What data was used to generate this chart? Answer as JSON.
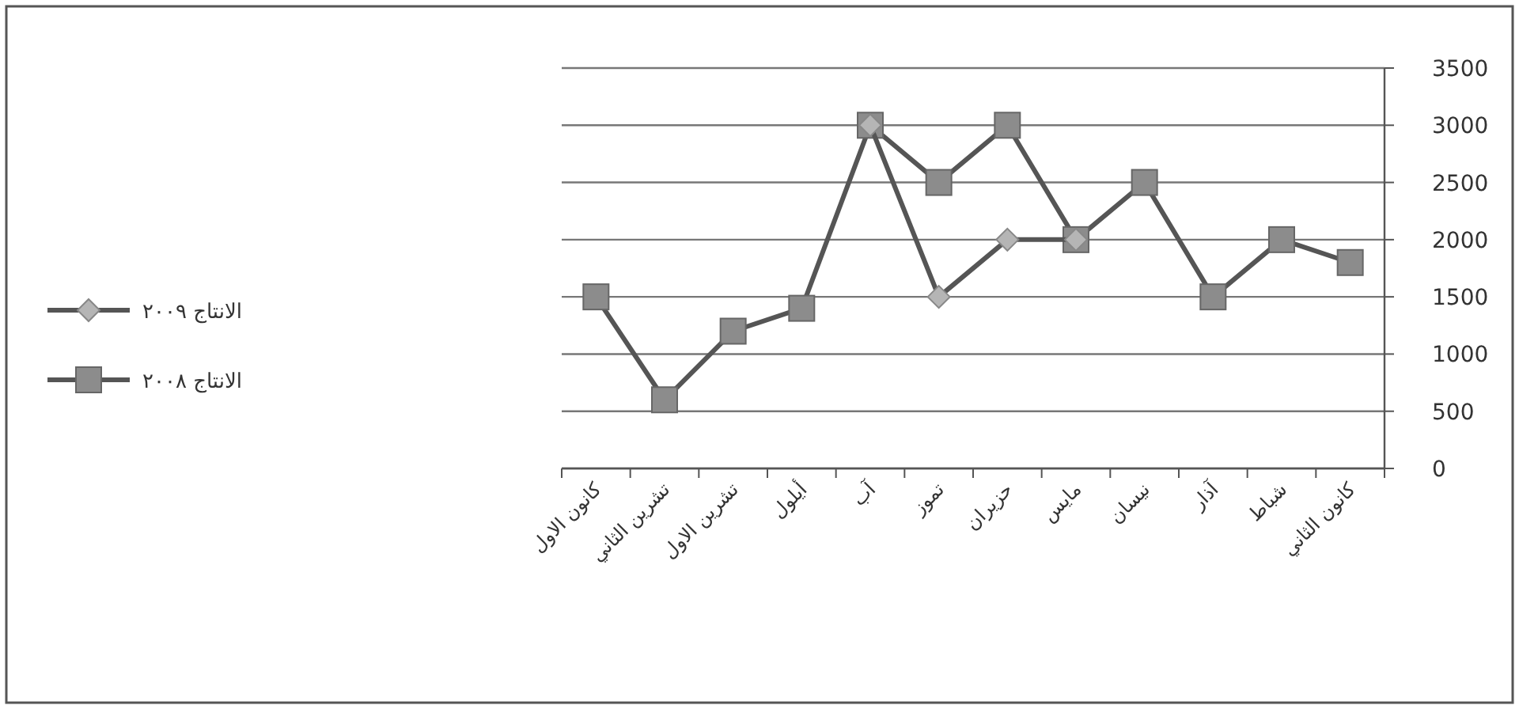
{
  "chart_data": {
    "type": "line",
    "categories": [
      "كانون الاول",
      "تشرين الثاني",
      "تشرين الاول",
      "أيلول",
      "آب",
      "تموز",
      "حزيران",
      "مايس",
      "نيسان",
      "آذار",
      "شباط",
      "كانون الثاني"
    ],
    "series": [
      {
        "name": "الانتاج ٢٠٠٩",
        "color": "#555555",
        "marker": "diamond",
        "values": [
          null,
          null,
          null,
          null,
          3000,
          1500,
          2000,
          2000,
          null,
          null,
          null,
          null
        ]
      },
      {
        "name": "الانتاج ٢٠٠٨",
        "color": "#555555",
        "marker": "square",
        "values": [
          1500,
          600,
          1200,
          1400,
          3000,
          2500,
          3000,
          2000,
          2500,
          1500,
          2000,
          1800
        ]
      }
    ],
    "ylim": [
      0,
      3500
    ],
    "yticks": [
      0,
      500,
      1000,
      1500,
      2000,
      2500,
      3000,
      3500
    ],
    "grid": "y",
    "legend": "left"
  }
}
